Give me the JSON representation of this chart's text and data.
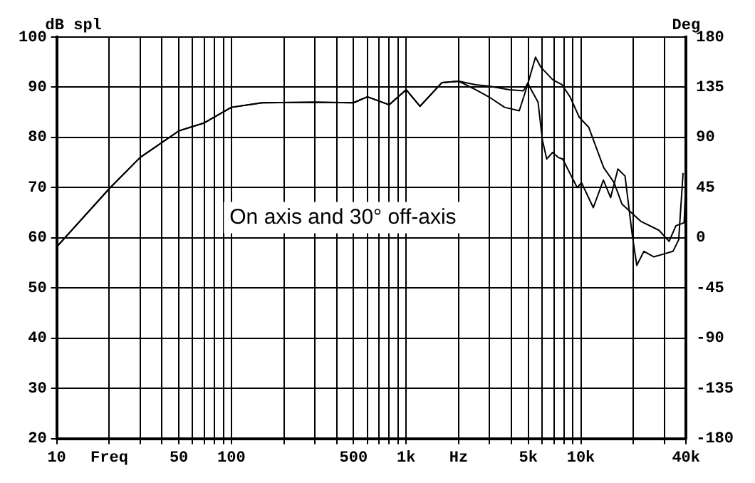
{
  "chart_data": {
    "type": "line",
    "ylabel": "dB spl",
    "y2label": "Deg",
    "annotations": [
      "On axis and 30° off-axis"
    ],
    "log": "x",
    "grid": true,
    "legend": false,
    "marker": "none",
    "line_style": "solid",
    "xlim": [
      10,
      40000
    ],
    "ylim": [
      20,
      100
    ],
    "y2lim": [
      -180,
      180
    ],
    "xticks": [
      10,
      {
        "value": 20,
        "label": "Freq"
      },
      {
        "value": 30,
        "label": null
      },
      {
        "value": 40,
        "label": null
      },
      50,
      {
        "value": 60,
        "label": null
      },
      {
        "value": 70,
        "label": null
      },
      {
        "value": 80,
        "label": null
      },
      {
        "value": 90,
        "label": null
      },
      100,
      {
        "value": 200,
        "label": null
      },
      {
        "value": 300,
        "label": null
      },
      {
        "value": 400,
        "label": null
      },
      500,
      {
        "value": 600,
        "label": null
      },
      {
        "value": 700,
        "label": null
      },
      {
        "value": 800,
        "label": null
      },
      {
        "value": 900,
        "label": null
      },
      {
        "value": 1000,
        "label": "1k"
      },
      {
        "value": 2000,
        "label": "Hz"
      },
      {
        "value": 3000,
        "label": null
      },
      {
        "value": 4000,
        "label": null
      },
      {
        "value": 5000,
        "label": "5k"
      },
      {
        "value": 6000,
        "label": null
      },
      {
        "value": 7000,
        "label": null
      },
      {
        "value": 8000,
        "label": null
      },
      {
        "value": 9000,
        "label": null
      },
      {
        "value": 10000,
        "label": "10k"
      },
      {
        "value": 20000,
        "label": null
      },
      {
        "value": 30000,
        "label": null
      },
      {
        "value": 40000,
        "label": "40k"
      }
    ],
    "yticks": [
      20,
      30,
      40,
      50,
      60,
      70,
      80,
      90,
      100
    ],
    "y2ticks": [
      -180,
      -135,
      -90,
      -45,
      0,
      45,
      90,
      135,
      180
    ],
    "series": [
      {
        "color": "#000000",
        "x": [
          10,
          20,
          30,
          50,
          70,
          100,
          150,
          300,
          500,
          600,
          800,
          1000,
          1200,
          1600,
          2000,
          2500,
          3000,
          3900,
          4700,
          5000,
          5500,
          5900,
          6900,
          7800,
          8700,
          9800,
          11100,
          13500,
          15500,
          17200,
          22000,
          28000,
          32000,
          35000,
          39000,
          40000
        ],
        "values": [
          58.2,
          69.8,
          76,
          81.3,
          82.9,
          86,
          86.9,
          87,
          86.9,
          88.1,
          86.5,
          89.5,
          86.2,
          90.9,
          91.2,
          90.5,
          90.2,
          89.5,
          89.3,
          91,
          96,
          94,
          91.5,
          90.5,
          88,
          84,
          82,
          74,
          71,
          66.7,
          63.3,
          61.5,
          59.3,
          62.4,
          63,
          72
        ]
      },
      {
        "color": "#000000",
        "x": [
          10,
          20,
          30,
          50,
          70,
          100,
          150,
          300,
          500,
          600,
          800,
          1000,
          1200,
          1600,
          2000,
          2500,
          3030,
          3660,
          4440,
          4980,
          5690,
          6030,
          6380,
          6890,
          7430,
          7870,
          9530,
          10090,
          11780,
          13460,
          14800,
          16300,
          17900,
          19700,
          20900,
          22960,
          26200,
          30000,
          33650,
          36300,
          38460
        ],
        "values": [
          58.2,
          69.8,
          76,
          81.3,
          82.9,
          86,
          86.9,
          87,
          86.9,
          88.1,
          86.5,
          89.5,
          86.2,
          90.9,
          91.2,
          89.5,
          87.9,
          86,
          85.3,
          90.7,
          87,
          79.4,
          75.7,
          77,
          76,
          75.7,
          70,
          71,
          66,
          71.5,
          68,
          73.7,
          72.3,
          60.5,
          54.5,
          57.3,
          56.2,
          56.8,
          57.3,
          59.6,
          72.9
        ]
      }
    ]
  }
}
